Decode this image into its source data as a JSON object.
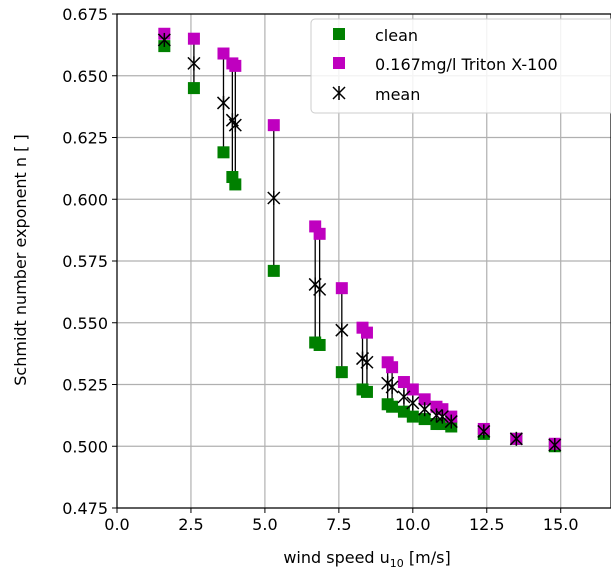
{
  "chart_data": {
    "type": "scatter",
    "xlabel": "wind speed u",
    "xlabel_sub": "10",
    "xlabel_unit": " [m/s]",
    "ylabel": "Schmidt number exponent n [ ]",
    "xlim": [
      0,
      16.7
    ],
    "ylim": [
      0.475,
      0.675
    ],
    "x_ticks": [
      0.0,
      2.5,
      5.0,
      7.5,
      10.0,
      12.5,
      15.0
    ],
    "x_tick_labels": [
      "0.0",
      "2.5",
      "5.0",
      "7.5",
      "10.0",
      "12.5",
      "15.0"
    ],
    "y_ticks": [
      0.475,
      0.5,
      0.525,
      0.55,
      0.575,
      0.6,
      0.625,
      0.65,
      0.675
    ],
    "y_tick_labels": [
      "0.475",
      "0.500",
      "0.525",
      "0.550",
      "0.575",
      "0.600",
      "0.625",
      "0.650",
      "0.675"
    ],
    "grid": true,
    "legend_position": "top-right",
    "series": [
      {
        "name": "clean",
        "marker": "square",
        "color": "#008000",
        "points": [
          {
            "x": 1.6,
            "y": 0.662
          },
          {
            "x": 2.6,
            "y": 0.645
          },
          {
            "x": 3.6,
            "y": 0.619
          },
          {
            "x": 3.9,
            "y": 0.609
          },
          {
            "x": 4.0,
            "y": 0.606
          },
          {
            "x": 5.3,
            "y": 0.571
          },
          {
            "x": 6.7,
            "y": 0.542
          },
          {
            "x": 6.85,
            "y": 0.541
          },
          {
            "x": 7.6,
            "y": 0.53
          },
          {
            "x": 8.3,
            "y": 0.523
          },
          {
            "x": 8.45,
            "y": 0.522
          },
          {
            "x": 9.15,
            "y": 0.517
          },
          {
            "x": 9.3,
            "y": 0.516
          },
          {
            "x": 9.7,
            "y": 0.514
          },
          {
            "x": 10.0,
            "y": 0.512
          },
          {
            "x": 10.4,
            "y": 0.511
          },
          {
            "x": 10.8,
            "y": 0.509
          },
          {
            "x": 11.0,
            "y": 0.509
          },
          {
            "x": 11.3,
            "y": 0.508
          },
          {
            "x": 12.4,
            "y": 0.505
          },
          {
            "x": 13.5,
            "y": 0.503
          },
          {
            "x": 14.8,
            "y": 0.5
          }
        ]
      },
      {
        "name": "0.167mg/l Triton X-100",
        "marker": "square",
        "color": "#bf00bf",
        "points": [
          {
            "x": 1.6,
            "y": 0.667
          },
          {
            "x": 2.6,
            "y": 0.665
          },
          {
            "x": 3.6,
            "y": 0.659
          },
          {
            "x": 3.9,
            "y": 0.655
          },
          {
            "x": 4.0,
            "y": 0.654
          },
          {
            "x": 5.3,
            "y": 0.63
          },
          {
            "x": 6.7,
            "y": 0.589
          },
          {
            "x": 6.85,
            "y": 0.586
          },
          {
            "x": 7.6,
            "y": 0.564
          },
          {
            "x": 8.3,
            "y": 0.548
          },
          {
            "x": 8.45,
            "y": 0.546
          },
          {
            "x": 9.15,
            "y": 0.534
          },
          {
            "x": 9.3,
            "y": 0.532
          },
          {
            "x": 9.7,
            "y": 0.526
          },
          {
            "x": 10.0,
            "y": 0.523
          },
          {
            "x": 10.4,
            "y": 0.519
          },
          {
            "x": 10.8,
            "y": 0.516
          },
          {
            "x": 11.0,
            "y": 0.515
          },
          {
            "x": 11.3,
            "y": 0.512
          },
          {
            "x": 12.4,
            "y": 0.507
          },
          {
            "x": 13.5,
            "y": 0.503
          },
          {
            "x": 14.8,
            "y": 0.501
          }
        ]
      },
      {
        "name": "mean",
        "marker": "x-star",
        "color": "#000000",
        "points": [
          {
            "x": 1.6,
            "y": 0.6645
          },
          {
            "x": 2.6,
            "y": 0.655
          },
          {
            "x": 3.6,
            "y": 0.639
          },
          {
            "x": 3.9,
            "y": 0.632
          },
          {
            "x": 4.0,
            "y": 0.63
          },
          {
            "x": 5.3,
            "y": 0.6005
          },
          {
            "x": 6.7,
            "y": 0.5655
          },
          {
            "x": 6.85,
            "y": 0.5635
          },
          {
            "x": 7.6,
            "y": 0.547
          },
          {
            "x": 8.3,
            "y": 0.5355
          },
          {
            "x": 8.45,
            "y": 0.534
          },
          {
            "x": 9.15,
            "y": 0.5255
          },
          {
            "x": 9.3,
            "y": 0.524
          },
          {
            "x": 9.7,
            "y": 0.52
          },
          {
            "x": 10.0,
            "y": 0.5175
          },
          {
            "x": 10.4,
            "y": 0.515
          },
          {
            "x": 10.8,
            "y": 0.5125
          },
          {
            "x": 11.0,
            "y": 0.512
          },
          {
            "x": 11.3,
            "y": 0.51
          },
          {
            "x": 12.4,
            "y": 0.506
          },
          {
            "x": 13.5,
            "y": 0.503
          },
          {
            "x": 14.8,
            "y": 0.5005
          }
        ]
      }
    ]
  }
}
